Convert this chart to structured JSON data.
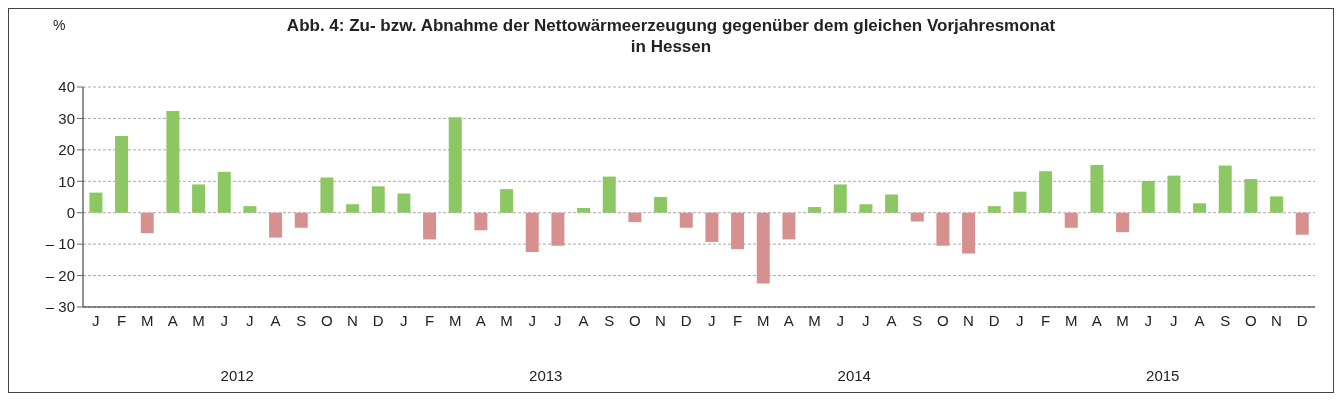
{
  "chart_data": {
    "type": "bar",
    "title": "Abb. 4: Zu- bzw. Abnahme der Nettowärmeerzeugung gegenüber dem gleichen Vorjahresmonat\nin Hessen",
    "ylabel": "%",
    "categories": [
      "J",
      "F",
      "M",
      "A",
      "M",
      "J",
      "J",
      "A",
      "S",
      "O",
      "N",
      "D",
      "J",
      "F",
      "M",
      "A",
      "M",
      "J",
      "J",
      "A",
      "S",
      "O",
      "N",
      "D",
      "J",
      "F",
      "M",
      "A",
      "M",
      "J",
      "J",
      "A",
      "S",
      "O",
      "N",
      "D",
      "J",
      "F",
      "M",
      "A",
      "M",
      "J",
      "J",
      "A",
      "S",
      "O",
      "N",
      "D"
    ],
    "values": [
      6.4,
      24.4,
      -6.5,
      32.4,
      9.0,
      13.0,
      2.1,
      -7.9,
      -4.8,
      11.2,
      2.7,
      8.4,
      6.1,
      -8.5,
      30.4,
      -5.6,
      7.5,
      -12.5,
      -10.5,
      1.5,
      11.5,
      -3.0,
      5.0,
      -4.8,
      -9.3,
      -11.6,
      -22.5,
      -8.5,
      1.8,
      9.0,
      2.7,
      5.8,
      -2.8,
      -10.5,
      -13.0,
      2.1,
      6.7,
      13.2,
      -4.8,
      15.2,
      -6.2,
      10.1,
      11.8,
      3.0,
      15.0,
      10.7,
      5.2,
      -7.0
    ],
    "colors": [
      "#8cc764",
      "#8cc764",
      "#d69090",
      "#8cc764",
      "#8cc764",
      "#8cc764",
      "#8cc764",
      "#d69090",
      "#d69090",
      "#8cc764",
      "#8cc764",
      "#8cc764",
      "#8cc764",
      "#d69090",
      "#8cc764",
      "#d69090",
      "#8cc764",
      "#d69090",
      "#d69090",
      "#8cc764",
      "#8cc764",
      "#d69090",
      "#8cc764",
      "#d69090",
      "#d69090",
      "#d69090",
      "#d69090",
      "#d69090",
      "#8cc764",
      "#8cc764",
      "#8cc764",
      "#8cc764",
      "#d69090",
      "#d69090",
      "#d69090",
      "#8cc764",
      "#8cc764",
      "#8cc764",
      "#d69090",
      "#8cc764",
      "#d69090",
      "#8cc764",
      "#8cc764",
      "#8cc764",
      "#8cc764",
      "#8cc764",
      "#8cc764",
      "#d69090"
    ],
    "ylim": [
      -30,
      40
    ],
    "yticks": [
      {
        "value": -30,
        "label": "– 30"
      },
      {
        "value": -20,
        "label": "– 20"
      },
      {
        "value": -10,
        "label": "– 10"
      },
      0,
      10,
      20,
      30,
      40
    ],
    "grid": "y",
    "legend": false,
    "annotations": [
      "2012",
      "2013",
      "2014",
      "2015"
    ]
  }
}
